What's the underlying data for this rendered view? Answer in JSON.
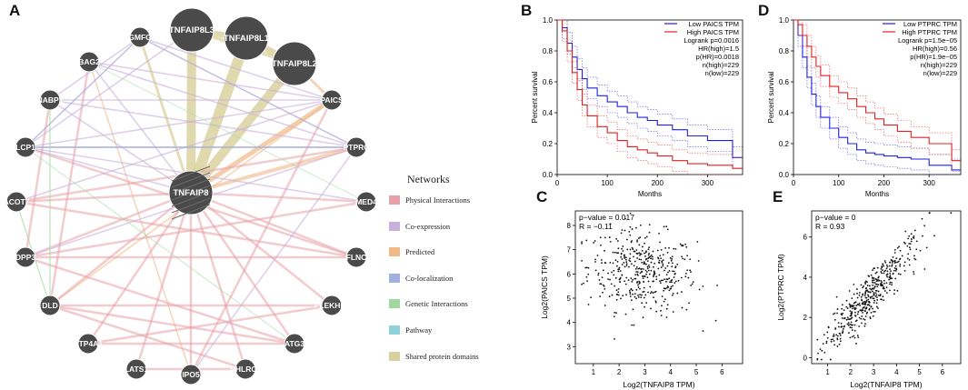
{
  "panel_letters": {
    "a": "A",
    "b": "B",
    "c": "C",
    "d": "D",
    "e": "E"
  },
  "network": {
    "center": "TNFAIP8",
    "nodes": [
      {
        "id": "TNFAIP8L3",
        "big": true
      },
      {
        "id": "TNFAIP8L1",
        "big": true
      },
      {
        "id": "TNFAIP8L2",
        "big": true
      },
      {
        "id": "GMFG"
      },
      {
        "id": "BAG2"
      },
      {
        "id": "NABP1"
      },
      {
        "id": "LCP1"
      },
      {
        "id": "ACOT7"
      },
      {
        "id": "DPP3"
      },
      {
        "id": "DLD"
      },
      {
        "id": "PTP4A1"
      },
      {
        "id": "LATS1"
      },
      {
        "id": "IPO5"
      },
      {
        "id": "NHLRC2"
      },
      {
        "id": "ATG3"
      },
      {
        "id": "PLEKHF2"
      },
      {
        "id": "FLNC"
      },
      {
        "id": "MED4"
      },
      {
        "id": "PTPRC"
      },
      {
        "id": "PAICS"
      }
    ],
    "legend": {
      "title": "Networks",
      "items": [
        {
          "label": "Physical Interactions",
          "color": "#e8a0a8"
        },
        {
          "label": "Co-expression",
          "color": "#c8b0d8"
        },
        {
          "label": "Predicted",
          "color": "#f0b888"
        },
        {
          "label": "Co-localization",
          "color": "#a0b0e0"
        },
        {
          "label": "Genetic Interactions",
          "color": "#a0d8a0"
        },
        {
          "label": "Pathway",
          "color": "#90d0d8"
        },
        {
          "label": "Shared protein domains",
          "color": "#d8d0a0"
        }
      ]
    }
  },
  "survival_plots": [
    {
      "panel": "B",
      "ylabel": "Percent survival",
      "xlabel": "Months",
      "x_ticks": [
        "0",
        "100",
        "200",
        "300"
      ],
      "y_ticks": [
        "0.0",
        "0.2",
        "0.4",
        "0.6",
        "0.8",
        "1.0"
      ],
      "legend_lines": [
        {
          "label": "Low PAICS TPM",
          "color": "#2020e0"
        },
        {
          "label": "High PAICS TPM",
          "color": "#e02020"
        }
      ],
      "stats": [
        "Logrank p=0.0016",
        "HR(high)=1.5",
        "p(HR)=0.0018",
        "n(high)=229",
        "n(low)=229"
      ]
    },
    {
      "panel": "D",
      "ylabel": "Percent survival",
      "xlabel": "Months",
      "x_ticks": [
        "0",
        "100",
        "200",
        "300"
      ],
      "y_ticks": [
        "0.0",
        "0.2",
        "0.4",
        "0.6",
        "0.8",
        "1.0"
      ],
      "legend_lines": [
        {
          "label": "Low PTPRC TPM",
          "color": "#2020e0"
        },
        {
          "label": "High PTPRC TPM",
          "color": "#e02020"
        }
      ],
      "stats": [
        "Logrank p=1.5e−05",
        "HR(high)=0.56",
        "p(HR)=1.9e−05",
        "n(high)=229",
        "n(low)=229"
      ]
    }
  ],
  "chart_data": [
    {
      "type": "line",
      "title": "",
      "xlabel": "Months",
      "ylabel": "Percent survival",
      "xlim": [
        0,
        370
      ],
      "ylim": [
        0,
        1
      ],
      "series": [
        {
          "name": "Low PAICS TPM",
          "x": [
            0,
            10,
            20,
            30,
            40,
            50,
            60,
            80,
            100,
            120,
            140,
            160,
            180,
            200,
            230,
            260,
            300,
            350,
            370
          ],
          "values": [
            1.0,
            0.95,
            0.85,
            0.76,
            0.68,
            0.62,
            0.56,
            0.51,
            0.47,
            0.44,
            0.4,
            0.37,
            0.35,
            0.32,
            0.29,
            0.25,
            0.22,
            0.11,
            0.11
          ]
        },
        {
          "name": "High PAICS TPM",
          "x": [
            0,
            10,
            20,
            30,
            40,
            50,
            60,
            80,
            100,
            120,
            140,
            160,
            180,
            200,
            230,
            260,
            300,
            350,
            370
          ],
          "values": [
            1.0,
            0.93,
            0.8,
            0.66,
            0.55,
            0.45,
            0.38,
            0.31,
            0.27,
            0.22,
            0.18,
            0.16,
            0.14,
            0.12,
            0.09,
            0.07,
            0.06,
            0.04,
            0.04
          ]
        }
      ]
    },
    {
      "type": "scatter",
      "xlabel": "Log2(TNFAIP8 TPM)",
      "ylabel": "Log2(PAICS TPM)",
      "xlim": [
        0.3,
        6.8
      ],
      "ylim": [
        2.3,
        8.6
      ],
      "x_ticks": [
        1,
        2,
        3,
        4,
        5,
        6
      ],
      "y_ticks": [
        3,
        4,
        5,
        6,
        7,
        8
      ],
      "annotations": [
        "p−value = 0.017",
        "R = −0.11"
      ],
      "trend": {
        "slope": -0.11,
        "intercept": 6.4,
        "noise": 0.85,
        "n": 420,
        "xmean": 2.9,
        "xsd": 1.05
      }
    },
    {
      "type": "line",
      "title": "",
      "xlabel": "Months",
      "ylabel": "Percent survival",
      "xlim": [
        0,
        370
      ],
      "ylim": [
        0,
        1
      ],
      "series": [
        {
          "name": "Low PTPRC TPM",
          "x": [
            0,
            10,
            20,
            30,
            40,
            50,
            60,
            80,
            100,
            120,
            140,
            160,
            180,
            200,
            230,
            260,
            300,
            350,
            370
          ],
          "values": [
            1.0,
            0.9,
            0.76,
            0.63,
            0.52,
            0.44,
            0.37,
            0.3,
            0.24,
            0.2,
            0.16,
            0.14,
            0.13,
            0.12,
            0.11,
            0.1,
            0.06,
            0.03,
            0.03
          ]
        },
        {
          "name": "High PTPRC TPM",
          "x": [
            0,
            10,
            20,
            30,
            40,
            50,
            60,
            80,
            100,
            120,
            140,
            160,
            180,
            200,
            230,
            260,
            300,
            350,
            370
          ],
          "values": [
            1.0,
            0.97,
            0.9,
            0.83,
            0.76,
            0.7,
            0.64,
            0.57,
            0.53,
            0.49,
            0.44,
            0.4,
            0.36,
            0.32,
            0.28,
            0.24,
            0.2,
            0.09,
            0.09
          ]
        }
      ]
    },
    {
      "type": "scatter",
      "xlabel": "Log2(TNFAIP8 TPM)",
      "ylabel": "Log2(PTPRC TPM)",
      "xlim": [
        0.3,
        6.8
      ],
      "ylim": [
        -0.3,
        7.3
      ],
      "x_ticks": [
        1,
        2,
        3,
        4,
        5,
        6
      ],
      "y_ticks": [
        0,
        2,
        4,
        6
      ],
      "annotations": [
        "p−value = 0",
        "R = 0.93"
      ],
      "trend": {
        "slope": 1.25,
        "intercept": -0.45,
        "noise": 0.55,
        "n": 440,
        "xmean": 2.8,
        "xsd": 1.05
      }
    }
  ],
  "scatter_labels": {
    "c": {
      "xlabel": "Log2(TNFAIP8 TPM)",
      "ylabel": "Log2(PAICS TPM)",
      "p": "p−value = 0.017",
      "r": "R = −0.11"
    },
    "e": {
      "xlabel": "Log2(TNFAIP8 TPM)",
      "ylabel": "Log2(PTPRC TPM)",
      "p": "p−value = 0",
      "r": "R = 0.93"
    }
  }
}
